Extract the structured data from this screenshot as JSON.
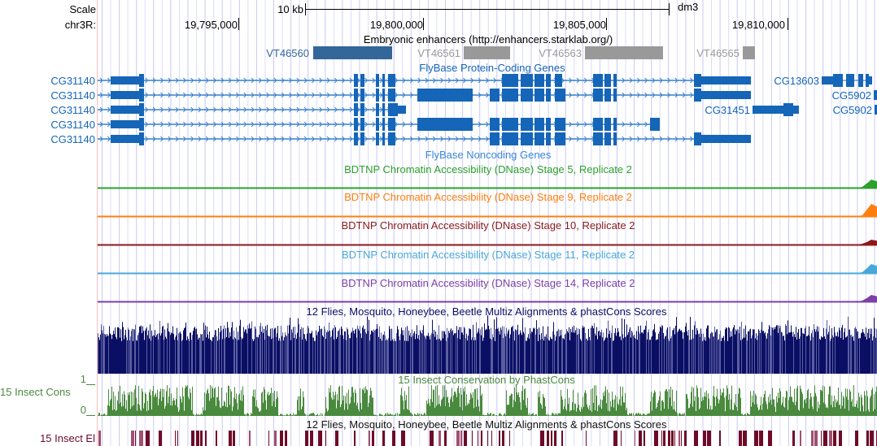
{
  "ruler": {
    "scale_label": "Scale",
    "chrom_label": "chr3R:",
    "scale_bar_label": "10 kb",
    "assembly": "dm3",
    "positions": [
      "19,795,000",
      "19,800,000",
      "19,805,000",
      "19,810,000"
    ]
  },
  "tracks": {
    "enhancers": {
      "title": "Embryonic enhancers (http://enhancers.starklab.org/)",
      "items": [
        "VT46560",
        "VT46561",
        "VT46563",
        "VT46565"
      ],
      "colors": {
        "active": "#336699",
        "inactive": "#999999"
      }
    },
    "flybase_coding": {
      "title": "FlyBase Protein-Coding Genes",
      "genes_left": [
        "CG31140",
        "CG31140",
        "CG31140",
        "CG31140",
        "CG31140"
      ],
      "genes_right": [
        "CG13603",
        "CG5902",
        "CG31451",
        "CG5902"
      ],
      "color": "#1565b8"
    },
    "flybase_noncoding": {
      "title": "FlyBase Noncoding Genes"
    },
    "dnase": [
      {
        "title": "BDTNP Chromatin Accessibility (DNase) Stage 5, Replicate 2",
        "color": "#2ca02c"
      },
      {
        "title": "BDTNP Chromatin Accessibility (DNase) Stage 9, Replicate 2",
        "color": "#ff7f0e"
      },
      {
        "title": "BDTNP Chromatin Accessibility (DNase) Stage 10, Replicate 2",
        "color": "#8b1a1a"
      },
      {
        "title": "BDTNP Chromatin Accessibility (DNase) Stage 11, Replicate 2",
        "color": "#4aa8d8"
      },
      {
        "title": "BDTNP Chromatin Accessibility (DNase) Stage 14, Replicate 2",
        "color": "#7d3fa8"
      }
    ],
    "multiz": {
      "title": "12 Flies, Mosquito, Honeybee, Beetle Multiz Alignments & phastCons Scores",
      "color": "#0b0f64"
    },
    "cons": {
      "title": "15 Insect Conservation by PhastCons",
      "side_label": "15 Insect Cons",
      "ymax": "1",
      "ymin": "0",
      "color": "#4a8a3e"
    },
    "elements": {
      "title": "12 Flies, Mosquito, Honeybee, Beetle Multiz Alignments & phastCons Scores",
      "side_label": "15 Insect El",
      "color": "#6e0a28"
    }
  }
}
